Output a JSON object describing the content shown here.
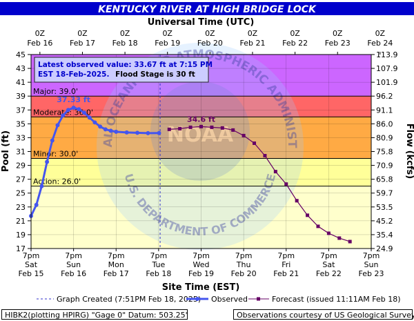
{
  "header": {
    "title": "KENTUCKY RIVER AT HIGH BRIDGE LOCK",
    "top_axis_title": "Universal Time (UTC)",
    "bottom_axis_title": "Site Time (EST)"
  },
  "info_box": {
    "line1": "Latest observed value: 33.67 ft at 7:15 PM",
    "line2": "EST 18-Feb-2025.",
    "line2_bold": "Flood Stage is 30 ft"
  },
  "flood_categories": [
    {
      "name": "Major",
      "label": "Major: 39.0'",
      "from": 39,
      "to": 45,
      "color": "#cc66ff"
    },
    {
      "name": "Moderate",
      "label": "Moderate: 36.0'",
      "from": 36,
      "to": 39,
      "color": "#ff6666"
    },
    {
      "name": "Minor",
      "label": "Minor: 30.0'",
      "from": 30,
      "to": 36,
      "color": "#ffaa44"
    },
    {
      "name": "Action",
      "label": "Action: 26.0'",
      "from": 26,
      "to": 30,
      "color": "#ffff99"
    }
  ],
  "watermark": {
    "ring_top": "NATIONAL OCEANIC AND ATMOSPHERIC ADMINISTRATION",
    "ring_bottom": "U.S. DEPARTMENT OF COMMERCE",
    "center": "NOAA"
  },
  "annotations": {
    "crest_observed": "37.33 ft",
    "crest_forecast": "34.6 ft"
  },
  "legend": {
    "graph_created": "Graph Created (7:51PM Feb 18, 2025)",
    "observed": "Observed",
    "forecast": "Forecast (issued 11:11AM Feb 18)"
  },
  "footer": {
    "left": "HIBK2(plotting HPIRG) \"Gage 0\" Datum: 503.25'",
    "right": "Observations courtesy of US Geological Survey"
  },
  "colors": {
    "title_bg": "#0000cc",
    "observed": "#4455ee",
    "forecast": "#660066",
    "graph_created_line": "#3333cc",
    "above_action_fill": "#ffffcc"
  },
  "chart_data": {
    "type": "line",
    "x_unit": "EST date-time (2025)",
    "xlim": [
      "2025-02-15 19:00",
      "2025-02-23 19:00"
    ],
    "ylim": [
      17,
      45
    ],
    "y2lim": [
      24.9,
      113.9
    ],
    "ylabel": "Pool (ft)",
    "y2label": "Flow (kcfs)",
    "y_ticks": [
      17,
      19,
      21,
      23,
      25,
      27,
      29,
      31,
      33,
      35,
      37,
      39,
      41,
      43,
      45
    ],
    "y2_ticks": [
      "24.9",
      "35.4",
      "45.2",
      "53.5",
      "59.7",
      "65.8",
      "70.9",
      "75.8",
      "80.9",
      "86.0",
      "91.1",
      "96.2",
      "101.9",
      "107.9",
      "113.9"
    ],
    "bottom_ticks": [
      {
        "time": "7pm",
        "day": "Sat",
        "date": "Feb 15"
      },
      {
        "time": "7pm",
        "day": "Sun",
        "date": "Feb 16"
      },
      {
        "time": "7pm",
        "day": "Mon",
        "date": "Feb 17"
      },
      {
        "time": "7pm",
        "day": "Tue",
        "date": "Feb 18"
      },
      {
        "time": "7pm",
        "day": "Wed",
        "date": "Feb 19"
      },
      {
        "time": "7pm",
        "day": "Thu",
        "date": "Feb 20"
      },
      {
        "time": "7pm",
        "day": "Fri",
        "date": "Feb 21"
      },
      {
        "time": "7pm",
        "day": "Sat",
        "date": "Feb 22"
      },
      {
        "time": "7pm",
        "day": "Sun",
        "date": "Feb 23"
      }
    ],
    "top_ticks": [
      {
        "time": "0Z",
        "date": "Feb 16"
      },
      {
        "time": "0Z",
        "date": "Feb 17"
      },
      {
        "time": "0Z",
        "date": "Feb 18"
      },
      {
        "time": "0Z",
        "date": "Feb 19"
      },
      {
        "time": "0Z",
        "date": "Feb 20"
      },
      {
        "time": "0Z",
        "date": "Feb 21"
      },
      {
        "time": "0Z",
        "date": "Feb 22"
      },
      {
        "time": "0Z",
        "date": "Feb 23"
      },
      {
        "time": "0Z",
        "date": "Feb 24"
      }
    ],
    "graph_created": "2025-02-18 19:51",
    "series": [
      {
        "name": "Observed",
        "x": [
          "2025-02-15 19:00",
          "2025-02-15 22:00",
          "2025-02-16 01:00",
          "2025-02-16 04:00",
          "2025-02-16 07:00",
          "2025-02-16 10:00",
          "2025-02-16 13:00",
          "2025-02-16 16:00",
          "2025-02-16 19:00",
          "2025-02-16 22:00",
          "2025-02-17 01:00",
          "2025-02-17 04:00",
          "2025-02-17 07:00",
          "2025-02-17 10:00",
          "2025-02-17 13:00",
          "2025-02-17 16:00",
          "2025-02-17 19:00",
          "2025-02-18 01:00",
          "2025-02-18 07:00",
          "2025-02-18 13:00",
          "2025-02-18 19:15"
        ],
        "y": [
          21.7,
          23.3,
          26.0,
          29.5,
          32.6,
          34.8,
          36.2,
          37.0,
          37.33,
          37.1,
          36.6,
          35.9,
          35.2,
          34.6,
          34.2,
          34.0,
          33.85,
          33.75,
          33.7,
          33.65,
          33.67
        ]
      },
      {
        "name": "Forecast",
        "x": [
          "2025-02-19 01:00",
          "2025-02-19 07:00",
          "2025-02-19 13:00",
          "2025-02-19 19:00",
          "2025-02-20 01:00",
          "2025-02-20 07:00",
          "2025-02-20 13:00",
          "2025-02-20 19:00",
          "2025-02-21 01:00",
          "2025-02-21 07:00",
          "2025-02-21 13:00",
          "2025-02-21 19:00",
          "2025-02-22 01:00",
          "2025-02-22 07:00",
          "2025-02-22 13:00",
          "2025-02-22 19:00",
          "2025-02-23 01:00",
          "2025-02-23 07:00"
        ],
        "y": [
          34.2,
          34.3,
          34.5,
          34.6,
          34.5,
          34.4,
          34.1,
          33.3,
          32.2,
          30.4,
          28.1,
          26.3,
          23.9,
          21.8,
          20.2,
          19.2,
          18.5,
          18.0
        ]
      }
    ]
  }
}
